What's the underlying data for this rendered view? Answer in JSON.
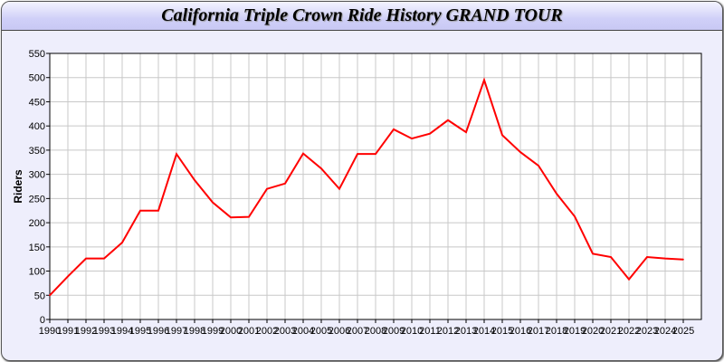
{
  "chart_data": {
    "type": "line",
    "title": "California Triple Crown Ride History GRAND TOUR",
    "xlabel": "",
    "ylabel": "Riders",
    "ylim": [
      0,
      550
    ],
    "yticks": [
      "0",
      "50",
      "100",
      "150",
      "200",
      "250",
      "300",
      "350",
      "400",
      "450",
      "500",
      "550"
    ],
    "grid": true,
    "x": [
      "1990",
      "1991",
      "1992",
      "1993",
      "1994",
      "1995",
      "1996",
      "1997",
      "1998",
      "1999",
      "2000",
      "2001",
      "2002",
      "2003",
      "2004",
      "2005",
      "2006",
      "2007",
      "2008",
      "2009",
      "2010",
      "2011",
      "2012",
      "2013",
      "2014",
      "2015",
      "2016",
      "2017",
      "2018",
      "2019",
      "2020",
      "2021",
      "2022",
      "2023",
      "2024",
      "2025"
    ],
    "series": [
      {
        "color": "#ff0000",
        "values": [
          50,
          89,
          126,
          126,
          159,
          225,
          225,
          342,
          288,
          242,
          211,
          212,
          270,
          281,
          343,
          312,
          270,
          342,
          342,
          393,
          374,
          384,
          412,
          387,
          495,
          381,
          346,
          318,
          260,
          213,
          136,
          129,
          83,
          129,
          126,
          124
        ]
      }
    ]
  }
}
